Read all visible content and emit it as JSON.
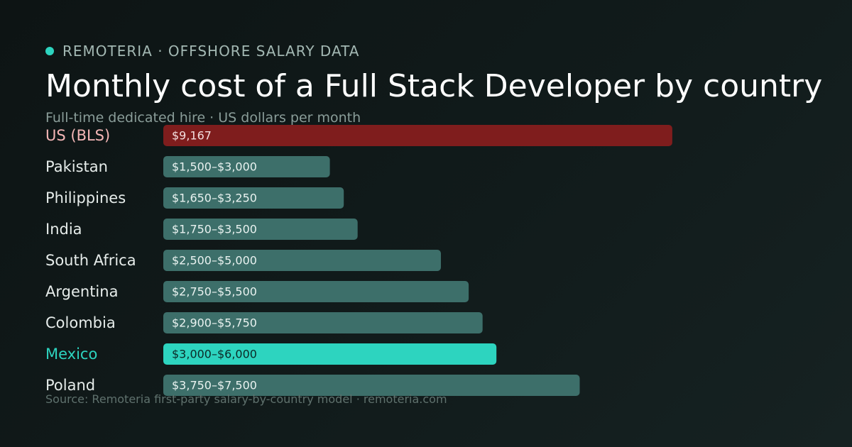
{
  "header": {
    "brand": "REMOTERIA · OFFSHORE SALARY DATA",
    "title": "Monthly cost of a Full Stack Developer by country",
    "subtitle": "Full-time dedicated hire · US dollars per month"
  },
  "footer": {
    "source": "Source: Remoteria first-party salary-by-country model · remoteria.com"
  },
  "colors": {
    "accent": "#2dd4bf",
    "baseline": "#c62828",
    "baseline_label": "#f4b6b6",
    "default_bar": "#3d6f6a",
    "default_label": "#e6ecea",
    "highlight_label": "#2dd4bf",
    "highlight_value": "#0b2a27",
    "value_text": "#e9f2f0"
  },
  "chart_data": {
    "type": "bar",
    "orientation": "horizontal",
    "title": "Monthly cost of a Full Stack Developer by country",
    "subtitle": "Full-time dedicated hire · US dollars per month",
    "unit": "US dollars per month",
    "xlim": [
      0,
      10000
    ],
    "grid": false,
    "legend": "none",
    "categories": [
      "US (BLS)",
      "Pakistan",
      "Philippines",
      "India",
      "South Africa",
      "Argentina",
      "Colombia",
      "Mexico",
      "Poland"
    ],
    "bars": [
      {
        "category": "US (BLS)",
        "value": 9167,
        "label": "$9,167",
        "style": "baseline"
      },
      {
        "category": "Pakistan",
        "min": 1500,
        "max": 3000,
        "label": "$1,500–$3,000",
        "style": "default"
      },
      {
        "category": "Philippines",
        "min": 1650,
        "max": 3250,
        "label": "$1,650–$3,250",
        "style": "default"
      },
      {
        "category": "India",
        "min": 1750,
        "max": 3500,
        "label": "$1,750–$3,500",
        "style": "default"
      },
      {
        "category": "South Africa",
        "min": 2500,
        "max": 5000,
        "label": "$2,500–$5,000",
        "style": "default"
      },
      {
        "category": "Argentina",
        "min": 2750,
        "max": 5500,
        "label": "$2,750–$5,500",
        "style": "default"
      },
      {
        "category": "Colombia",
        "min": 2900,
        "max": 5750,
        "label": "$2,900–$5,750",
        "style": "default"
      },
      {
        "category": "Mexico",
        "min": 3000,
        "max": 6000,
        "label": "$3,000–$6,000",
        "style": "highlight"
      },
      {
        "category": "Poland",
        "min": 3750,
        "max": 7500,
        "label": "$3,750–$7,500",
        "style": "default"
      }
    ]
  }
}
